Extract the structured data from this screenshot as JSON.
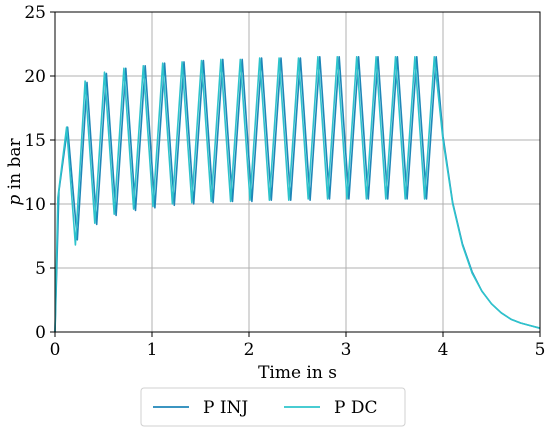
{
  "chart_data": {
    "type": "line",
    "xlabel": "Time in s",
    "ylabel_italic": "p",
    "ylabel_rest": " in bar",
    "xlim": [
      0,
      5
    ],
    "ylim": [
      0,
      25
    ],
    "xticks": [
      "0",
      "1",
      "2",
      "3",
      "4",
      "5"
    ],
    "yticks": [
      "0",
      "5",
      "10",
      "15",
      "20",
      "25"
    ],
    "grid": true,
    "legend_position": "bottom",
    "series": [
      {
        "name": "P INJ",
        "color": "#1f86b8",
        "x": [
          0,
          0.04,
          0.13,
          0.23,
          0.33,
          0.43,
          0.53,
          0.63,
          0.73,
          0.83,
          0.93,
          1.03,
          1.13,
          1.23,
          1.33,
          1.43,
          1.53,
          1.63,
          1.73,
          1.83,
          1.93,
          2.03,
          2.13,
          2.23,
          2.33,
          2.43,
          2.53,
          2.63,
          2.73,
          2.83,
          2.93,
          3.03,
          3.13,
          3.23,
          3.33,
          3.43,
          3.53,
          3.63,
          3.73,
          3.83,
          3.93,
          4.0,
          4.1,
          4.2,
          4.3,
          4.4,
          4.5,
          4.6,
          4.7,
          4.8,
          4.9,
          5.0
        ],
        "y": [
          0,
          11.0,
          16.0,
          7.2,
          19.5,
          8.4,
          20.2,
          9.1,
          20.6,
          9.5,
          20.8,
          9.7,
          21.0,
          9.9,
          21.1,
          10.0,
          21.2,
          10.1,
          21.3,
          10.2,
          21.3,
          10.2,
          21.4,
          10.3,
          21.4,
          10.3,
          21.4,
          10.3,
          21.5,
          10.4,
          21.5,
          10.4,
          21.5,
          10.4,
          21.5,
          10.4,
          21.5,
          10.4,
          21.5,
          10.4,
          21.5,
          15.3,
          10.1,
          6.9,
          4.7,
          3.2,
          2.2,
          1.5,
          1.0,
          0.7,
          0.5,
          0.3
        ]
      },
      {
        "name": "P DC",
        "color": "#2ec4cc",
        "x": [
          0,
          0.03,
          0.12,
          0.21,
          0.31,
          0.41,
          0.51,
          0.61,
          0.71,
          0.81,
          0.91,
          1.01,
          1.11,
          1.21,
          1.31,
          1.41,
          1.51,
          1.61,
          1.71,
          1.81,
          1.91,
          2.01,
          2.11,
          2.21,
          2.31,
          2.41,
          2.51,
          2.61,
          2.71,
          2.81,
          2.91,
          3.01,
          3.11,
          3.21,
          3.31,
          3.41,
          3.51,
          3.61,
          3.71,
          3.81,
          3.91,
          4.0,
          4.1,
          4.2,
          4.3,
          4.4,
          4.5,
          4.6,
          4.7,
          4.8,
          4.9,
          5.0
        ],
        "y": [
          0,
          10.5,
          16.0,
          6.8,
          19.6,
          8.5,
          20.3,
          9.2,
          20.6,
          9.6,
          20.8,
          9.8,
          21.0,
          10.0,
          21.1,
          10.1,
          21.2,
          10.2,
          21.3,
          10.2,
          21.3,
          10.3,
          21.4,
          10.3,
          21.4,
          10.3,
          21.4,
          10.4,
          21.5,
          10.4,
          21.5,
          10.4,
          21.5,
          10.4,
          21.5,
          10.4,
          21.5,
          10.4,
          21.5,
          10.4,
          21.5,
          15.0,
          10.0,
          6.8,
          4.6,
          3.2,
          2.2,
          1.5,
          1.0,
          0.7,
          0.5,
          0.3
        ]
      }
    ]
  }
}
